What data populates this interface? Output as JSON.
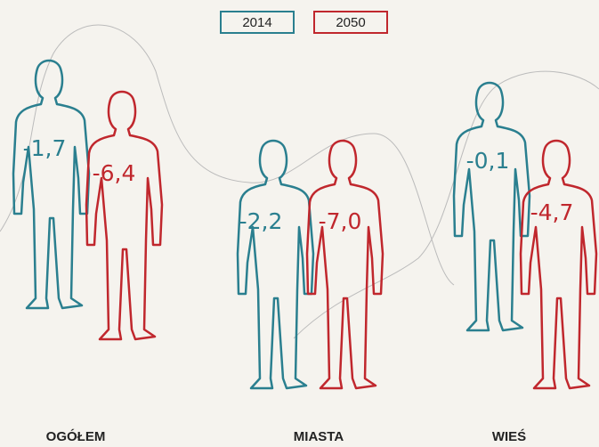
{
  "chart_data": {
    "type": "pictogram",
    "categories": [
      "OGÓŁEM",
      "MIASTA",
      "WIEŚ"
    ],
    "series": [
      {
        "name": "2014",
        "color": "#2a7f8f",
        "values": [
          -1.7,
          -2.2,
          -0.1
        ],
        "value_labels": [
          "-1,7",
          "-2,2",
          "-0,1"
        ]
      },
      {
        "name": "2050",
        "color": "#c0272d",
        "values": [
          -6.4,
          -7.0,
          -4.7
        ],
        "value_labels": [
          "-6,4",
          "-7,0",
          "-4,7"
        ]
      }
    ]
  }
}
